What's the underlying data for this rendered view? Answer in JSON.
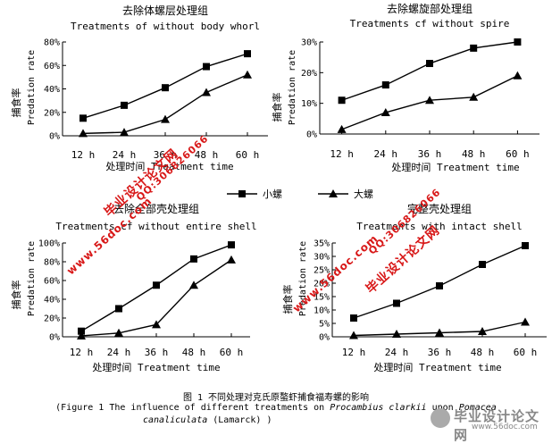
{
  "chart_data": [
    {
      "type": "line",
      "title": "去除体螺层处理组",
      "subtitle": "Treatments of without body whorl",
      "xlabel": "处理时间 Treatment time",
      "ylabel": "捕食率",
      "ylabel_en": "Predation rate",
      "categories": [
        "12 h",
        "24 h",
        "36 h",
        "48 h",
        "60 h"
      ],
      "y_ticks": [
        "0%",
        "20%",
        "40%",
        "60%",
        "80%"
      ],
      "ylim": [
        0,
        80
      ],
      "series": [
        {
          "name": "小螺",
          "marker": "square",
          "values": [
            15,
            26,
            41,
            59,
            70
          ]
        },
        {
          "name": "大螺",
          "marker": "triangle",
          "values": [
            2,
            3,
            14,
            37,
            52
          ]
        }
      ]
    },
    {
      "type": "line",
      "title": "去除螺旋部处理组",
      "subtitle": "Treatments cf without spire",
      "xlabel": "处理时间 Treatment time",
      "ylabel": "捕食率",
      "ylabel_en": "Predation rate",
      "categories": [
        "12 h",
        "24 h",
        "36 h",
        "48 h",
        "60 h"
      ],
      "y_ticks": [
        "0%",
        "10%",
        "20%",
        "30%"
      ],
      "ylim": [
        0,
        30
      ],
      "series": [
        {
          "name": "小螺",
          "marker": "square",
          "values": [
            11,
            16,
            23,
            28,
            30
          ]
        },
        {
          "name": "大螺",
          "marker": "triangle",
          "values": [
            1.5,
            7,
            11,
            12,
            19
          ]
        }
      ]
    },
    {
      "type": "line",
      "title": "去除全部壳处理组",
      "subtitle": "Treatments cf without entire shell",
      "xlabel": "处理时间 Treatment time",
      "ylabel": "捕食率",
      "ylabel_en": "Predation rate",
      "categories": [
        "12 h",
        "24 h",
        "36 h",
        "48 h",
        "60 h"
      ],
      "y_ticks": [
        "0%",
        "20%",
        "40%",
        "60%",
        "80%",
        "100%"
      ],
      "ylim": [
        0,
        100
      ],
      "series": [
        {
          "name": "小螺",
          "marker": "square",
          "values": [
            6,
            30,
            55,
            83,
            98
          ]
        },
        {
          "name": "大螺",
          "marker": "triangle",
          "values": [
            1,
            4,
            13,
            55,
            82
          ]
        }
      ]
    },
    {
      "type": "line",
      "title": "完整壳处理组",
      "subtitle": "Treatments with intact shell",
      "xlabel": "处理时间 Treatment time",
      "ylabel": "捕食率",
      "ylabel_en": "Predation rate",
      "categories": [
        "12 h",
        "24 h",
        "36 h",
        "48 h",
        "60 h"
      ],
      "y_ticks": [
        "0%",
        "5%",
        "10%",
        "15%",
        "20%",
        "25%",
        "30%",
        "35%"
      ],
      "ylim": [
        0,
        35
      ],
      "series": [
        {
          "name": "小螺",
          "marker": "square",
          "values": [
            7,
            12.5,
            19,
            27,
            34
          ]
        },
        {
          "name": "大螺",
          "marker": "triangle",
          "values": [
            0.5,
            1,
            1.5,
            2,
            5.5
          ]
        }
      ]
    }
  ],
  "legend": {
    "items": [
      {
        "name": "小螺",
        "marker": "square"
      },
      {
        "name": "大螺",
        "marker": "triangle"
      }
    ],
    "placement": "center"
  },
  "caption": {
    "line1": "图 1 不同处理对克氏原螯虾捕食福寿螺的影响",
    "line2_prefix": "(Figure 1 The influence of different treatments on ",
    "line2_species1": "Procambius clarkii",
    "line2_mid": " upon ",
    "line2_species2": "Pomacea",
    "line3_species": "canaliculata",
    "line3_suffix": " (Lamarck) )"
  },
  "watermarks": {
    "site": "www.56doc.com",
    "title": "毕业设计论文网",
    "qq": "QQ:306826066",
    "footer_big": "毕业设计论文网",
    "footer_small": "www.56doc.com"
  },
  "colors": {
    "line": "#000000",
    "watermark": "#d81818",
    "footer": "#888888"
  }
}
